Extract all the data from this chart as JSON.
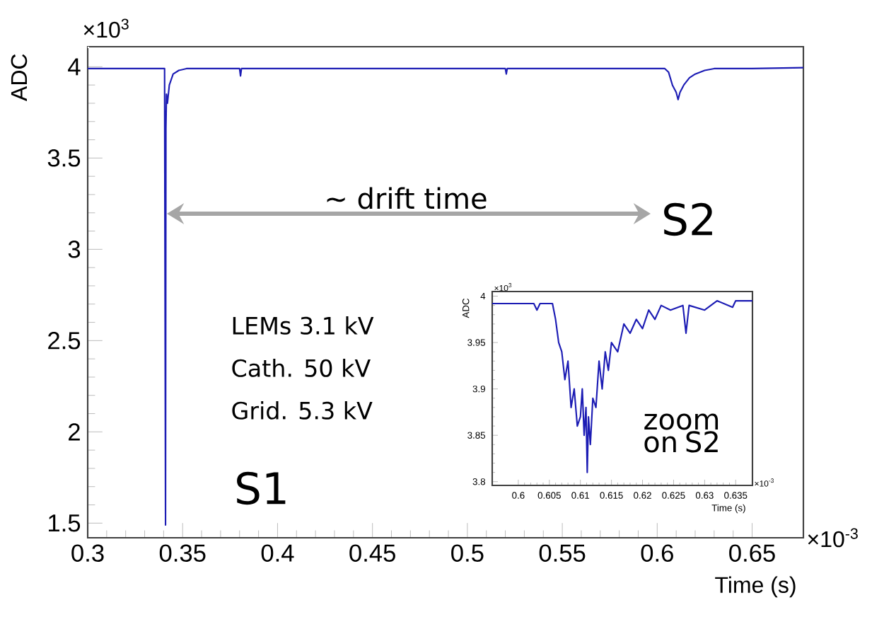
{
  "chart_data": [
    {
      "type": "line",
      "xlabel": "Time (s)",
      "ylabel": "ADC",
      "xlim": [
        0.3,
        0.677
      ],
      "ylim": [
        1.42,
        4.11
      ],
      "xticks": [
        0.3,
        0.35,
        0.4,
        0.45,
        0.5,
        0.55,
        0.6,
        0.65
      ],
      "yticks": [
        1.5,
        2,
        2.5,
        3,
        3.5,
        4
      ],
      "series": [
        {
          "color": "#1c1cb4",
          "x": [
            0.3,
            0.32,
            0.34,
            0.3405,
            0.341,
            0.3412,
            0.3415,
            0.342,
            0.343,
            0.345,
            0.348,
            0.352,
            0.38,
            0.3805,
            0.381,
            0.45,
            0.52,
            0.5205,
            0.521,
            0.6,
            0.604,
            0.606,
            0.608,
            0.61,
            0.611,
            0.612,
            0.614,
            0.617,
            0.62,
            0.625,
            0.63,
            0.65,
            0.677
          ],
          "values": [
            3.99,
            3.99,
            3.99,
            3.99,
            1.49,
            3.66,
            3.85,
            3.8,
            3.9,
            3.96,
            3.98,
            3.99,
            3.99,
            3.95,
            3.99,
            3.99,
            3.99,
            3.96,
            3.99,
            3.99,
            3.99,
            3.97,
            3.9,
            3.86,
            3.82,
            3.86,
            3.9,
            3.94,
            3.96,
            3.98,
            3.99,
            3.99,
            3.995
          ]
        }
      ],
      "annotations": [
        "S1",
        "S2",
        "~ drift time",
        "LEMs 3.1 kV",
        "Cath. 50 kV",
        "Grid. 5.3 kV",
        "×10$^{3}$",
        "×10$^{-3}$"
      ]
    },
    {
      "type": "line",
      "xlabel": "Time (s)",
      "ylabel": "ADC",
      "xlim": [
        0.5958,
        0.6377
      ],
      "ylim": [
        3.796,
        4.005
      ],
      "xticks": [
        0.6,
        0.605,
        0.61,
        0.615,
        0.62,
        0.625,
        0.63,
        0.635
      ],
      "yticks": [
        3.8,
        3.85,
        3.9,
        3.95,
        4
      ],
      "series": [
        {
          "color": "#1c1cb4",
          "x": [
            0.5958,
            0.6,
            0.6025,
            0.603,
            0.6035,
            0.6055,
            0.606,
            0.6065,
            0.607,
            0.6075,
            0.608,
            0.6085,
            0.609,
            0.6095,
            0.61,
            0.6103,
            0.6106,
            0.6109,
            0.6111,
            0.6113,
            0.6116,
            0.612,
            0.6125,
            0.613,
            0.6135,
            0.614,
            0.6145,
            0.615,
            0.616,
            0.617,
            0.618,
            0.619,
            0.62,
            0.621,
            0.622,
            0.623,
            0.6245,
            0.6265,
            0.627,
            0.6275,
            0.63,
            0.632,
            0.6345,
            0.635,
            0.6377
          ],
          "values": [
            3.992,
            3.992,
            3.992,
            3.985,
            3.992,
            3.992,
            3.975,
            3.95,
            3.94,
            3.91,
            3.93,
            3.88,
            3.9,
            3.86,
            3.87,
            3.9,
            3.85,
            3.88,
            3.81,
            3.87,
            3.84,
            3.89,
            3.88,
            3.93,
            3.9,
            3.94,
            3.92,
            3.95,
            3.94,
            3.97,
            3.96,
            3.975,
            3.965,
            3.985,
            3.975,
            3.99,
            3.985,
            3.99,
            3.96,
            3.99,
            3.985,
            3.995,
            3.988,
            3.995,
            3.995
          ]
        }
      ],
      "annotations": [
        "zoom on S2",
        "×10$^{3}$",
        "×10$^{-3}$"
      ]
    }
  ]
}
